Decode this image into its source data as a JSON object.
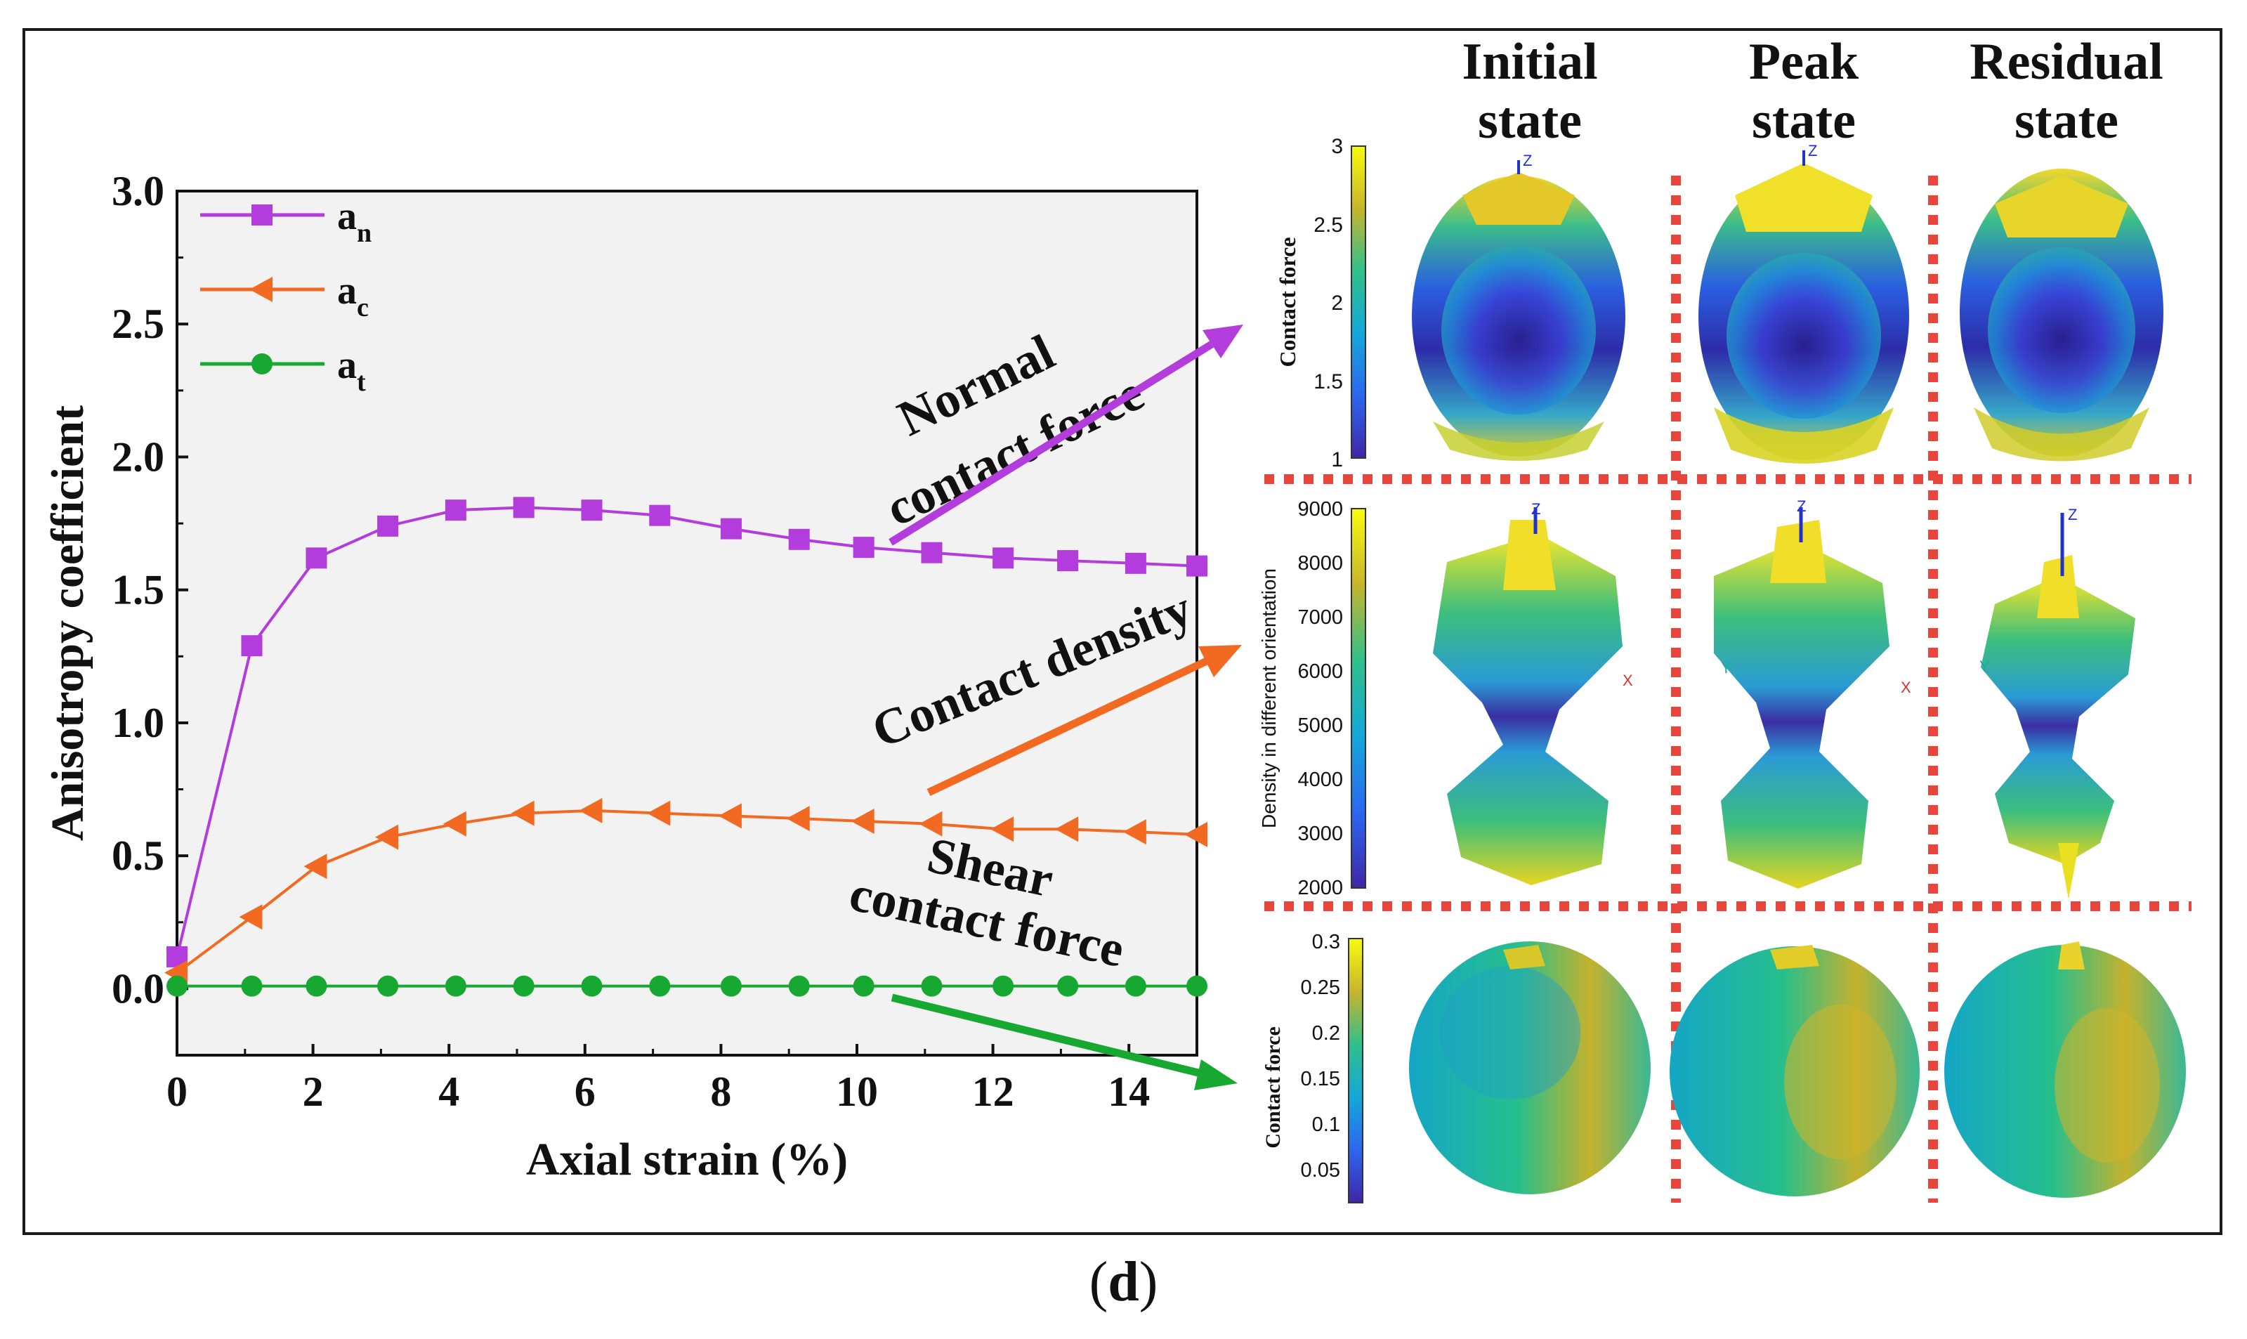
{
  "colors": {
    "an": "#b23cdc",
    "ac": "#f26a21",
    "at": "#17a832",
    "plot_bg": "#f2f2f2",
    "divider": "#e8463c"
  },
  "chart_data": {
    "type": "line",
    "xlabel": "Axial strain (%)",
    "ylabel": "Anisotropy coefficient",
    "xlim": [
      0,
      15
    ],
    "ylim": [
      -0.25,
      3.0
    ],
    "xticks": [
      0,
      2,
      4,
      6,
      8,
      10,
      12,
      14
    ],
    "yticks": [
      0.0,
      0.5,
      1.0,
      1.5,
      2.0,
      2.5,
      3.0
    ],
    "xtick_labels": [
      "0",
      "2",
      "4",
      "6",
      "8",
      "10",
      "12",
      "14"
    ],
    "ytick_labels": [
      "0.0",
      "0.5",
      "1.0",
      "1.5",
      "2.0",
      "2.5",
      "3.0"
    ],
    "x": [
      0,
      1.1,
      2.05,
      3.1,
      4.1,
      5.1,
      6.1,
      7.1,
      8.15,
      9.15,
      10.1,
      11.1,
      12.15,
      13.1,
      14.1,
      15
    ],
    "series": [
      {
        "name": "a_n",
        "label_main": "a",
        "label_sub": "n",
        "marker": "square",
        "values": [
          0.12,
          1.29,
          1.62,
          1.74,
          1.8,
          1.81,
          1.8,
          1.78,
          1.73,
          1.69,
          1.66,
          1.64,
          1.62,
          1.61,
          1.6,
          1.59
        ]
      },
      {
        "name": "a_c",
        "label_main": "a",
        "label_sub": "c",
        "marker": "triangle-left",
        "values": [
          0.06,
          0.27,
          0.46,
          0.57,
          0.62,
          0.66,
          0.67,
          0.66,
          0.65,
          0.64,
          0.63,
          0.62,
          0.6,
          0.6,
          0.59,
          0.58
        ]
      },
      {
        "name": "a_t",
        "label_main": "a",
        "label_sub": "t",
        "marker": "circle",
        "values": [
          0.01,
          0.01,
          0.01,
          0.01,
          0.01,
          0.01,
          0.01,
          0.01,
          0.01,
          0.01,
          0.01,
          0.01,
          0.01,
          0.01,
          0.01,
          0.01
        ]
      }
    ],
    "legend_position": "top-left",
    "annotations": [
      {
        "id": "normal",
        "lines": [
          "Normal",
          "contact force"
        ]
      },
      {
        "id": "density",
        "lines": [
          "Contact density"
        ]
      },
      {
        "id": "shear",
        "lines": [
          "Shear",
          "contact force"
        ]
      }
    ]
  },
  "columns": [
    {
      "line1": "Initial",
      "line2": "state"
    },
    {
      "line1": "Peak",
      "line2": "state"
    },
    {
      "line1": "Residual",
      "line2": "state"
    }
  ],
  "rows": [
    {
      "colorbar_label": "Contact force",
      "ticks": [
        "3",
        "2.5",
        "2",
        "1.5",
        "1"
      ]
    },
    {
      "colorbar_label": "Density in different orientation",
      "ticks": [
        "9000",
        "8000",
        "7000",
        "6000",
        "5000",
        "4000",
        "3000",
        "2000"
      ]
    },
    {
      "colorbar_label": "Contact force",
      "ticks": [
        "0.3",
        "0.25",
        "0.2",
        "0.15",
        "0.1",
        "0.05"
      ]
    }
  ],
  "axis_marks": {
    "z": "Z",
    "x": "X",
    "y": "Y"
  },
  "caption": {
    "open": "(",
    "letter": "d",
    "close": ")"
  }
}
